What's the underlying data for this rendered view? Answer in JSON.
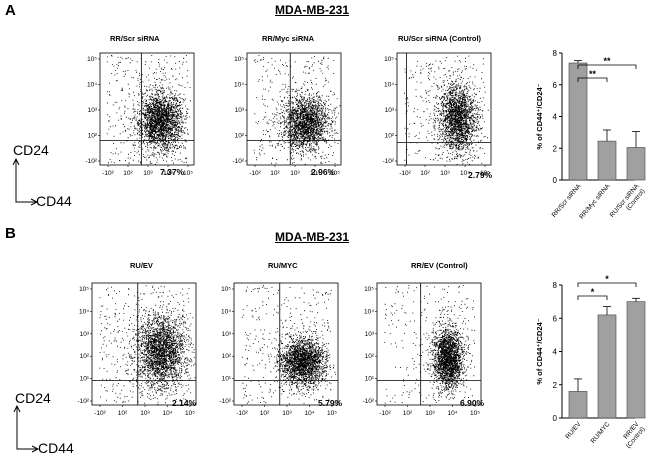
{
  "panels": [
    {
      "letter": "A",
      "title": "MDA-MB-231",
      "y_axis_marker": "CD24",
      "x_axis_marker": "CD44",
      "flow_plots": [
        {
          "title": "RR/Scr siRNA",
          "percent": "7.37%"
        },
        {
          "title": "RR/Myc siRNA",
          "percent": "2.96%"
        },
        {
          "title": "RU/Scr siRNA (Control)",
          "percent": "2.79%"
        }
      ],
      "tick_labels": {
        "y": [
          "10⁵",
          "10⁴",
          "10³",
          "10²",
          "-10²"
        ],
        "x": [
          "-10²",
          "10²",
          "10³",
          "10⁴",
          "10⁵"
        ]
      }
    },
    {
      "letter": "B",
      "title": "MDA-MB-231",
      "y_axis_marker": "CD24",
      "x_axis_marker": "CD44",
      "flow_plots": [
        {
          "title": "RU/EV",
          "percent": "2.14%"
        },
        {
          "title": "RU/MYC",
          "percent": "5.79%"
        },
        {
          "title": "RR/EV (Control)",
          "percent": "6.90%"
        }
      ],
      "tick_labels": {
        "y": [
          "10⁵",
          "10⁴",
          "10³",
          "10²",
          "10¹",
          "-10²"
        ],
        "x": [
          "-10²",
          "10²",
          "10³",
          "10⁴",
          "10⁵"
        ]
      }
    }
  ],
  "chart_data": [
    {
      "type": "bar",
      "panel": "A",
      "ylabel": "% of CD44⁺/CD24⁻",
      "ylim": [
        0,
        8
      ],
      "yticks": [
        0,
        2,
        4,
        6,
        8
      ],
      "categories": [
        "RR/Scr siRNA",
        "RR/Myc siRNA",
        "RU/Scr siRNA (Control)"
      ],
      "category_lines": [
        [
          "RR/Scr siRNA"
        ],
        [
          "RR/Myc siRNA"
        ],
        [
          "RU/Scr siRNA",
          "(Control)"
        ]
      ],
      "values": [
        7.37,
        2.45,
        2.05
      ],
      "errors": [
        0.15,
        0.7,
        1.0
      ],
      "significance": [
        {
          "from": 0,
          "to": 1,
          "label": "**"
        },
        {
          "from": 0,
          "to": 2,
          "label": "**"
        }
      ],
      "bar_color": "#a0a0a0"
    },
    {
      "type": "bar",
      "panel": "B",
      "ylabel": "% of CD44⁺/CD24⁻",
      "ylim": [
        0,
        8
      ],
      "yticks": [
        0,
        2,
        4,
        6,
        8
      ],
      "categories": [
        "RU/EV",
        "RU/MYC",
        "RR/EV (Control)"
      ],
      "category_lines": [
        [
          "RU/EV"
        ],
        [
          "RU/MYC"
        ],
        [
          "RR/EV",
          "(Control)"
        ]
      ],
      "values": [
        1.6,
        6.2,
        7.0
      ],
      "errors": [
        0.75,
        0.5,
        0.2
      ],
      "significance": [
        {
          "from": 0,
          "to": 1,
          "label": "*"
        },
        {
          "from": 0,
          "to": 2,
          "label": "*"
        }
      ],
      "bar_color": "#a0a0a0"
    }
  ]
}
